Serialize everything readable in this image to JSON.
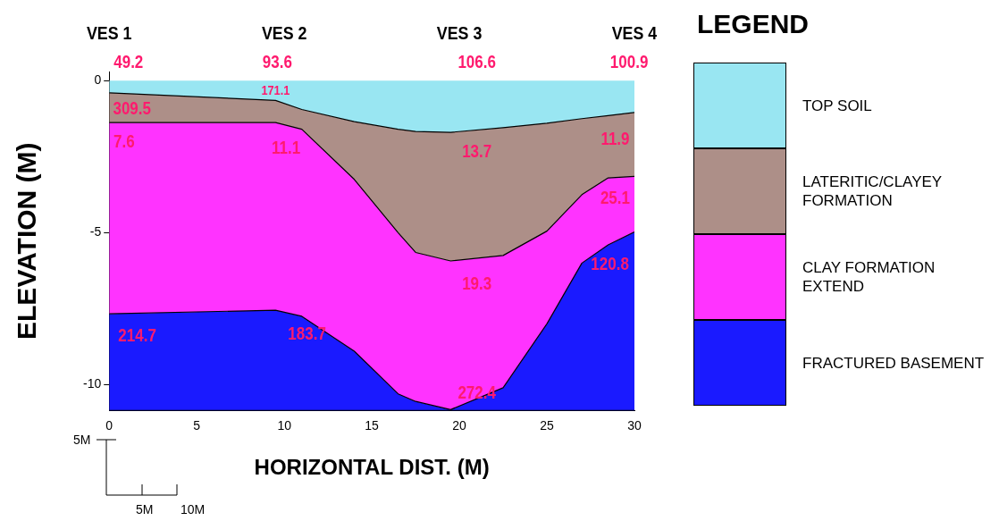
{
  "chart_data": {
    "type": "area",
    "stacked": true,
    "xlabel": "HORIZONTAL DIST. (M)",
    "ylabel": "ELEVATION (M)",
    "legend_title": "LEGEND",
    "legend": "right",
    "grid": false,
    "x": [
      0,
      9.5,
      11,
      14,
      16.5,
      17.5,
      19.5,
      22.5,
      25,
      27,
      28.5,
      30
    ],
    "xlim": [
      0,
      30
    ],
    "xticks": [
      0,
      5,
      10,
      15,
      20,
      25,
      30
    ],
    "ylim": [
      -10.85,
      0.3
    ],
    "yticks": [
      0,
      -5,
      -10
    ],
    "series": [
      {
        "name": "TOP SOIL",
        "color": "#99e6f2",
        "values": [
          -0.4,
          -0.65,
          -0.95,
          -1.35,
          -1.6,
          -1.67,
          -1.7,
          -1.55,
          -1.4,
          -1.25,
          -1.15,
          -1.05
        ]
      },
      {
        "name": "LATERITIC/CLAYEY FORMATION",
        "color": "#ad8f88",
        "values": [
          -0.98,
          -0.73,
          -0.65,
          -1.9,
          -3.4,
          -3.98,
          -4.23,
          -4.2,
          -3.55,
          -2.5,
          -2.05,
          -2.1
        ]
      },
      {
        "name": "CLAY FORMATION EXTEND",
        "color": "#ff33ff",
        "values": [
          -6.29,
          -6.17,
          -6.15,
          -5.65,
          -5.3,
          -4.9,
          -4.89,
          -4.35,
          -3.05,
          -2.25,
          -2.2,
          -1.83
        ]
      },
      {
        "name": "FRACTURED BASEMENT",
        "color": "#1a1aff",
        "values": [
          -3.18,
          -3.3,
          -3.1,
          -1.95,
          -0.55,
          -0.3,
          -0.03,
          -0.75,
          -2.85,
          -4.85,
          -5.45,
          -5.87
        ]
      }
    ],
    "annotations": [
      "VES 1",
      "VES 2",
      "VES 3",
      "VES 4",
      "49.2",
      "93.6",
      "106.6",
      "100.9",
      "171.1",
      "309.5",
      "7.6",
      "11.1",
      "13.7",
      "11.9",
      "25.1",
      "19.3",
      "120.8",
      "214.7",
      "183.7",
      "272.4",
      "5M",
      "5M",
      "10M"
    ]
  }
}
